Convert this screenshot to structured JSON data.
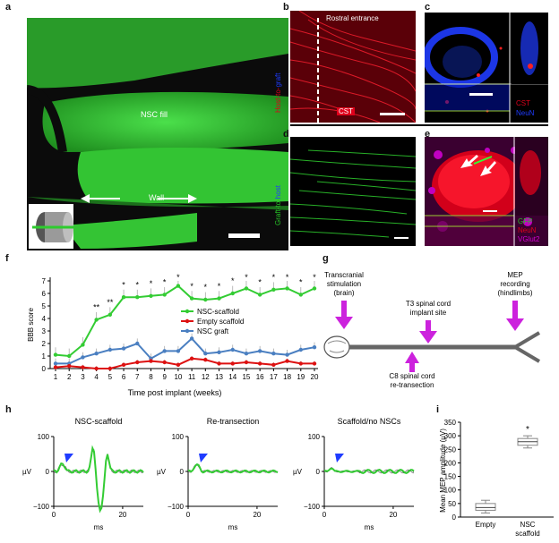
{
  "panel_letters": {
    "a": "a",
    "b": "b",
    "c": "c",
    "d": "d",
    "e": "e",
    "f": "f",
    "g": "g",
    "h": "h",
    "i": "i"
  },
  "panel_a": {
    "fill_label": "NSC fill",
    "wall_label": "Wall",
    "colors": {
      "green": "#39d339",
      "bg": "#0a0a0a"
    }
  },
  "panel_b": {
    "side_label_red": "Host-",
    "side_label_dir": "to-",
    "side_label_blue": "graft",
    "entrance_label": "Rostral entrance",
    "marker_label": "CST"
  },
  "panel_c": {
    "legend": [
      "CST",
      "NeuN"
    ],
    "legend_colors": [
      "#e0001b",
      "#1f3cff"
    ]
  },
  "panel_d": {
    "side_label_green": "Graft-",
    "side_label_dir": "to-",
    "side_label_blue": "host"
  },
  "panel_e": {
    "legend": [
      "GFP",
      "NeuN",
      "VGlut2"
    ],
    "legend_colors": [
      "#27c027",
      "#e0001b",
      "#d400d4"
    ]
  },
  "panel_g": {
    "stim_label": [
      "Transcranial",
      "stimulation",
      "(brain)"
    ],
    "implant_label": [
      "T3 spinal cord",
      "implant site"
    ],
    "mep_label": [
      "MEP",
      "recording",
      "(hindlimbs)"
    ],
    "c8_label": [
      "C8 spinal cord",
      "re-transection"
    ],
    "arrow_color": "#cc22dd"
  },
  "panel_h": {
    "titles": [
      "NSC-scaffold",
      "Re-transection",
      "Scaffold/no NSCs"
    ],
    "ylabel": "µV",
    "xlabel": "ms",
    "yticks": [
      "100",
      "0",
      "−100"
    ],
    "xticks": [
      "0",
      "20"
    ]
  },
  "chart_data": [
    {
      "type": "line",
      "title": "",
      "xlabel": "Time post implant (weeks)",
      "ylabel": "BBB score",
      "ylim": [
        0,
        7
      ],
      "x": [
        1,
        2,
        3,
        4,
        5,
        6,
        7,
        8,
        9,
        10,
        11,
        12,
        13,
        14,
        15,
        16,
        17,
        18,
        19,
        20
      ],
      "yticks": [
        0,
        1,
        2,
        3,
        4,
        5,
        6,
        7
      ],
      "legend_position": "right",
      "series": [
        {
          "name": "NSC-scaffold",
          "color": "#33cc33",
          "values": [
            1.1,
            1.0,
            1.9,
            3.9,
            4.3,
            5.7,
            5.7,
            5.8,
            5.9,
            6.6,
            5.6,
            5.5,
            5.6,
            6.0,
            6.4,
            5.9,
            6.3,
            6.4,
            5.9,
            6.4
          ]
        },
        {
          "name": "Empty scaffold",
          "color": "#dd1111",
          "values": [
            0.1,
            0.2,
            0.1,
            0.0,
            0.0,
            0.3,
            0.5,
            0.6,
            0.5,
            0.3,
            0.8,
            0.7,
            0.4,
            0.4,
            0.5,
            0.4,
            0.3,
            0.6,
            0.4,
            0.4
          ]
        },
        {
          "name": "NSC graft",
          "color": "#4a7fc1",
          "values": [
            0.4,
            0.4,
            0.9,
            1.2,
            1.5,
            1.6,
            2.0,
            0.8,
            1.4,
            1.4,
            2.4,
            1.2,
            1.3,
            1.5,
            1.2,
            1.4,
            1.2,
            1.1,
            1.5,
            1.7
          ]
        }
      ],
      "significance": [
        "",
        "",
        "",
        "**",
        "**",
        "*",
        "*",
        "*",
        "*",
        "*",
        "*",
        "*",
        "*",
        "*",
        "*",
        "*",
        "*",
        "*",
        "*",
        "*"
      ]
    },
    {
      "type": "box",
      "title": "",
      "ylabel": "Mean MEP amplitude (µV)",
      "ylim": [
        0,
        350
      ],
      "yticks": [
        0,
        50,
        100,
        150,
        200,
        250,
        300,
        350
      ],
      "categories": [
        "Empty",
        "NSC scaffold"
      ],
      "boxes": [
        {
          "min": 15,
          "q1": 25,
          "median": 35,
          "q3": 50,
          "max": 62
        },
        {
          "min": 255,
          "q1": 265,
          "median": 278,
          "q3": 290,
          "max": 300
        }
      ],
      "significance": [
        "",
        "*"
      ]
    }
  ]
}
